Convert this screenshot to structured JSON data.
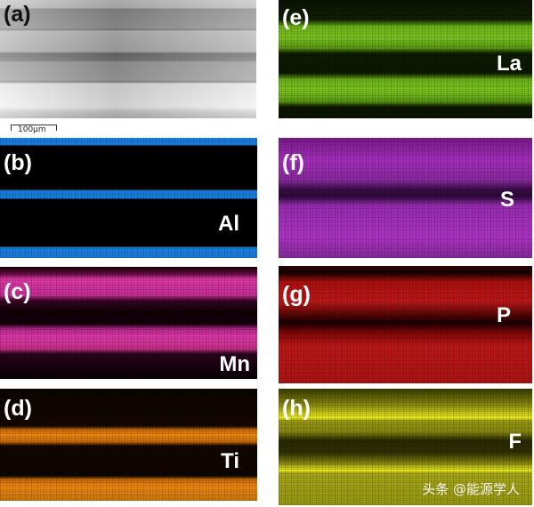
{
  "panels": [
    {
      "label": "(a)",
      "element": "",
      "color": "#a0a0a0"
    },
    {
      "label": "(b)",
      "element": "Al",
      "color": "#1a7fe0"
    },
    {
      "label": "(c)",
      "element": "Mn",
      "color": "#e03aa8"
    },
    {
      "label": "(d)",
      "element": "Ti",
      "color": "#f08a10"
    },
    {
      "label": "(e)",
      "element": "La",
      "color": "#7cc520"
    },
    {
      "label": "(f)",
      "element": "S",
      "color": "#b035c8"
    },
    {
      "label": "(g)",
      "element": "P",
      "color": "#c01818"
    },
    {
      "label": "(h)",
      "element": "F",
      "color": "#f0f020"
    }
  ],
  "scale_bar": "100μm",
  "watermark": "头条 @能源学人"
}
